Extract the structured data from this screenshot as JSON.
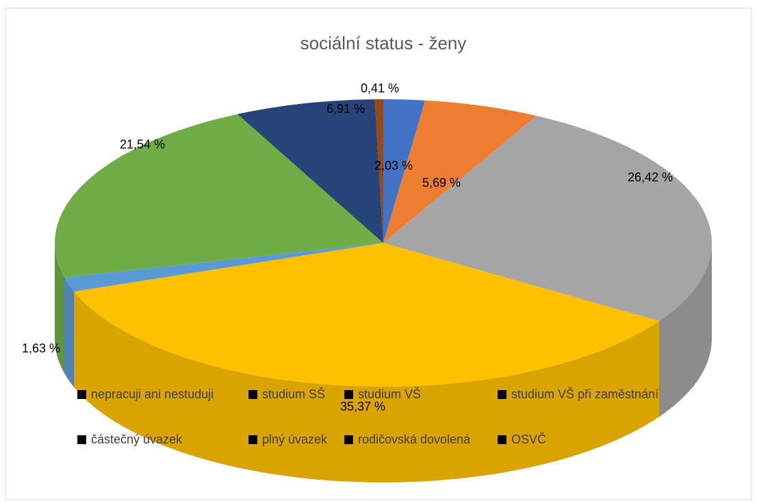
{
  "chart_data": {
    "type": "pie3d",
    "title": "sociální status - ženy",
    "categories": [
      "nepracuji ani nestuduji",
      "studium SŠ",
      "studium VŠ",
      "studium VŠ při zaměstnání",
      "částečný úvazek",
      "plný úvazek",
      "rodičovská dovolená",
      "OSVČ"
    ],
    "values": [
      2.03,
      5.69,
      26.42,
      35.37,
      1.63,
      21.54,
      6.91,
      0.41
    ],
    "value_labels": [
      "2,03 %",
      "5,69 %",
      "26,42 %",
      "35,37 %",
      "1,63 %",
      "21,54 %",
      "6,91 %",
      "0,41 %"
    ],
    "colors": [
      "#4472c4",
      "#ed7d31",
      "#a5a5a5",
      "#ffc000",
      "#5b9bd5",
      "#70ad47",
      "#264478",
      "#9e480e"
    ]
  }
}
